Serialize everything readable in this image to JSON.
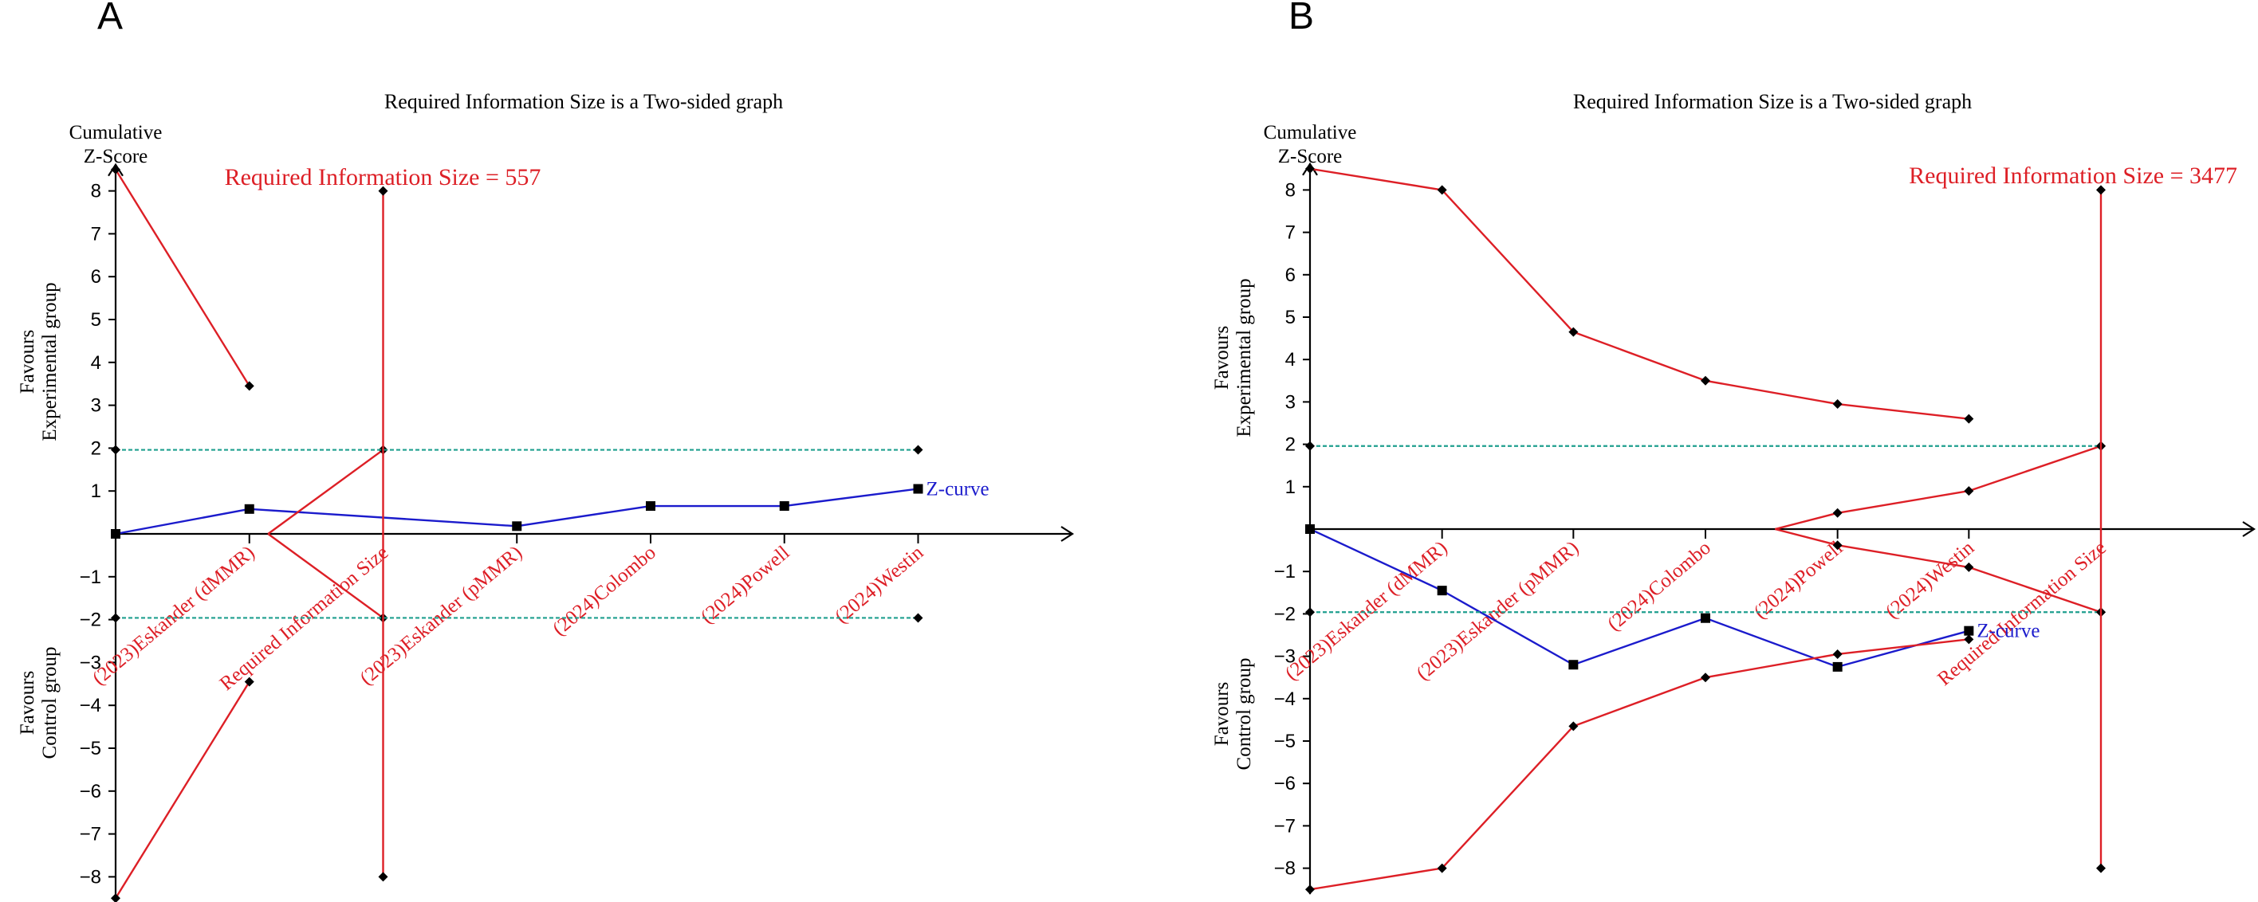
{
  "figure": {
    "colors": {
      "boundary": "#dd1f26",
      "zcurve": "#1b1bcc",
      "threshold": "#1f9f8f",
      "axis": "#000000",
      "text": "#000000"
    },
    "panels": [
      {
        "label": "A",
        "title": "Required Information Size is a Two-sided graph",
        "y_axis_label_lines": [
          "Cumulative",
          "Z-Score"
        ],
        "favours_top_lines": [
          "Favours",
          "Experimental group"
        ],
        "favours_bottom_lines": [
          "Favours",
          "Control group"
        ],
        "ris_label": "Required Information Size = 557",
        "zcurve_label": "Z-curve",
        "y_ticks": [
          8,
          7,
          6,
          5,
          4,
          3,
          2,
          1,
          -1,
          -2,
          -3,
          -4,
          -5,
          -6,
          -7,
          -8
        ],
        "y_tick_labels": [
          "8",
          "7",
          "6",
          "5",
          "4",
          "3",
          "2",
          "1",
          "−1",
          "−2",
          "−3",
          "−4",
          "−5",
          "−6",
          "−7",
          "−8"
        ],
        "study_labels": [
          "(2023)Eskander (dMMR)",
          "Required Information Size",
          "(2023)Eskander (pMMR)",
          "(2024)Colombo",
          "(2024)Powell",
          "(2024)Westin"
        ]
      },
      {
        "label": "B",
        "title": "Required Information Size is a Two-sided graph",
        "y_axis_label_lines": [
          "Cumulative",
          "Z-Score"
        ],
        "favours_top_lines": [
          "Favours",
          "Experimental group"
        ],
        "favours_bottom_lines": [
          "Favours",
          "Control group"
        ],
        "ris_label": "Required Information Size = 3477",
        "zcurve_label": "Z-curve",
        "y_ticks": [
          8,
          7,
          6,
          5,
          4,
          3,
          2,
          1,
          -1,
          -2,
          -3,
          -4,
          -5,
          -6,
          -7,
          -8
        ],
        "y_tick_labels": [
          "8",
          "7",
          "6",
          "5",
          "4",
          "3",
          "2",
          "1",
          "−1",
          "−2",
          "−3",
          "−4",
          "−5",
          "−6",
          "−7",
          "−8"
        ],
        "study_labels": [
          "(2023)Eskander (dMMR)",
          "(2023)Eskander (pMMR)",
          "(2024)Colombo",
          "(2024)Powell",
          "(2024)Westin",
          "Required Information Size"
        ]
      }
    ]
  },
  "chart_data": [
    {
      "type": "line",
      "title": "Required Information Size is a Two-sided graph",
      "panel": "A",
      "xlabel": "",
      "ylabel": "Cumulative Z-Score",
      "ylim": [
        -8.5,
        8.5
      ],
      "x_units": "relative information fraction (RIS = 1)",
      "required_information_size": 557,
      "x_positions": [
        0,
        0.5,
        1,
        1.5,
        2,
        2.5,
        3
      ],
      "categories": [
        "",
        "(2023)Eskander (dMMR)",
        "Required Information Size",
        "(2023)Eskander (pMMR)",
        "(2024)Colombo",
        "(2024)Powell",
        "(2024)Westin"
      ],
      "series": [
        {
          "name": "Z-curve",
          "x": [
            0,
            0.5,
            1.5,
            2,
            2.5,
            3
          ],
          "y": [
            0,
            0.58,
            0.18,
            0.65,
            0.65,
            1.05
          ]
        },
        {
          "name": "Upper monitoring boundary",
          "x": [
            0,
            0.5
          ],
          "y": [
            8.5,
            3.45
          ]
        },
        {
          "name": "Lower monitoring boundary",
          "x": [
            0,
            0.5
          ],
          "y": [
            -8.5,
            -3.45
          ]
        },
        {
          "name": "Upper futility boundary",
          "x": [
            0.57,
            1
          ],
          "y": [
            0,
            1.96
          ]
        },
        {
          "name": "Lower futility boundary",
          "x": [
            0.57,
            1
          ],
          "y": [
            0,
            -1.96
          ]
        },
        {
          "name": "Conventional boundary (+1.96)",
          "x": [
            0,
            3
          ],
          "y": [
            1.96,
            1.96
          ]
        },
        {
          "name": "Conventional boundary (−1.96)",
          "x": [
            0,
            3
          ],
          "y": [
            -1.96,
            -1.96
          ]
        },
        {
          "name": "Required information size",
          "x": [
            1,
            1
          ],
          "y": [
            8,
            -8
          ]
        }
      ]
    },
    {
      "type": "line",
      "title": "Required Information Size is a Two-sided graph",
      "panel": "B",
      "xlabel": "",
      "ylabel": "Cumulative Z-Score",
      "ylim": [
        -8.5,
        8.5
      ],
      "x_units": "relative information fraction (RIS = 1)",
      "required_information_size": 3477,
      "x_positions": [
        0,
        0.167,
        0.333,
        0.5,
        0.667,
        0.833,
        1
      ],
      "categories": [
        "",
        "(2023)Eskander (dMMR)",
        "(2023)Eskander (pMMR)",
        "(2024)Colombo",
        "(2024)Powell",
        "(2024)Westin",
        "Required Information Size"
      ],
      "series": [
        {
          "name": "Z-curve",
          "x": [
            0,
            0.167,
            0.333,
            0.5,
            0.667,
            0.833
          ],
          "y": [
            0,
            -1.45,
            -3.2,
            -2.1,
            -3.25,
            -2.4
          ]
        },
        {
          "name": "Upper monitoring boundary",
          "x": [
            0,
            0.167,
            0.333,
            0.5,
            0.667,
            0.833
          ],
          "y": [
            8.5,
            8.0,
            4.65,
            3.5,
            2.95,
            2.6
          ]
        },
        {
          "name": "Lower monitoring boundary",
          "x": [
            0,
            0.167,
            0.333,
            0.5,
            0.667,
            0.833
          ],
          "y": [
            -8.5,
            -8.0,
            -4.65,
            -3.5,
            -2.95,
            -2.6
          ]
        },
        {
          "name": "Upper futility boundary",
          "x": [
            0.588,
            0.667,
            0.833,
            1
          ],
          "y": [
            0,
            0.38,
            0.9,
            1.96
          ]
        },
        {
          "name": "Lower futility boundary",
          "x": [
            0.588,
            0.667,
            0.833,
            1
          ],
          "y": [
            0,
            -0.38,
            -0.9,
            -1.96
          ]
        },
        {
          "name": "Conventional boundary (+1.96)",
          "x": [
            0,
            1
          ],
          "y": [
            1.96,
            1.96
          ]
        },
        {
          "name": "Conventional boundary (−1.96)",
          "x": [
            0,
            1
          ],
          "y": [
            -1.96,
            -1.96
          ]
        },
        {
          "name": "Required information size",
          "x": [
            1,
            1
          ],
          "y": [
            8,
            -8
          ]
        }
      ]
    }
  ]
}
